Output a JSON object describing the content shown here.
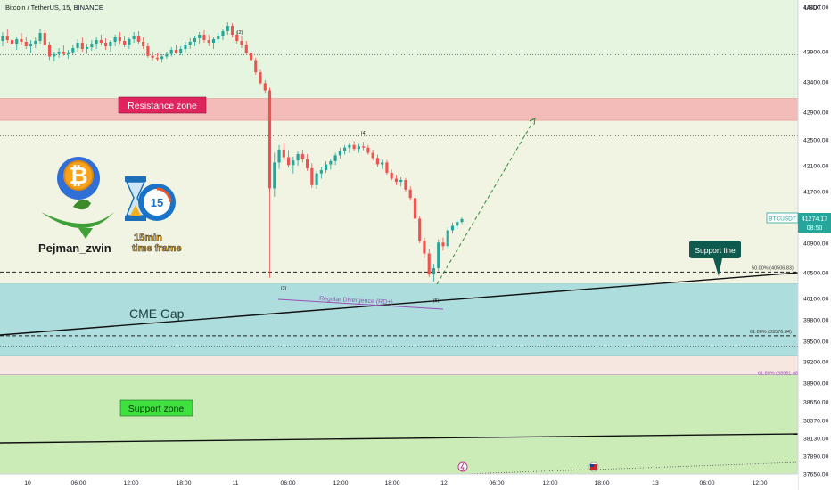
{
  "header": {
    "title": "Bitcoin / TetherUS, 15, BINANCE"
  },
  "chart_data": {
    "type": "candlestick",
    "title": "Bitcoin / TetherUS, 15, BINANCE",
    "ylim": [
      37600,
      44550
    ],
    "y_axis_currency": "USDT",
    "y_ticks": [
      44400,
      43900,
      43400,
      42900,
      42500,
      42100,
      41700,
      40900,
      40500,
      40100,
      39800,
      39500,
      39200,
      38900,
      38650,
      38370,
      38130,
      37890,
      37650
    ],
    "x_ticks": [
      "10",
      "06:00",
      "12:00",
      "18:00",
      "11",
      "06:00",
      "12:00",
      "18:00",
      "12",
      "06:00",
      "12:00",
      "18:00",
      "13",
      "06:00",
      "12:00"
    ],
    "price_label": {
      "symbol": "BTCUSDT",
      "value": "41274.17",
      "countdown": "08:50"
    },
    "zones": [
      {
        "name": "Resistance zone",
        "from": 42780,
        "to": 43130,
        "color": "#f2b8b5"
      },
      {
        "name": "CME Gap",
        "from": 39280,
        "to": 40330,
        "color": "#a9dcdc"
      },
      {
        "name": "Support zone",
        "from": 37600,
        "to": 39020,
        "color": "#c9ebb4"
      }
    ],
    "fib_levels": [
      {
        "label": "50.00% (40506.83)",
        "value": 40506.83
      },
      {
        "label": "61.80% (39576.04)",
        "value": 39576.04
      },
      {
        "label": "61.80% (38981.48)",
        "value": 38981.48
      }
    ],
    "waves": [
      "(2)",
      "(3)",
      "(4)",
      "(5)"
    ],
    "annotations": [
      "Regular Divergence (RD+)",
      "Support line"
    ],
    "candles": [
      [
        44020,
        44120,
        43960,
        44080
      ],
      [
        44080,
        44150,
        44000,
        44030
      ],
      [
        44030,
        44090,
        43940,
        43990
      ],
      [
        43990,
        44060,
        43920,
        44040
      ],
      [
        44040,
        44110,
        43980,
        44010
      ],
      [
        44010,
        44070,
        43930,
        43960
      ],
      [
        43960,
        44030,
        43880,
        43990
      ],
      [
        43990,
        44060,
        43940,
        44020
      ],
      [
        44020,
        44160,
        43990,
        44110
      ],
      [
        44110,
        44140,
        43960,
        43980
      ],
      [
        43980,
        44010,
        43760,
        43820
      ],
      [
        43820,
        43900,
        43740,
        43860
      ],
      [
        43860,
        43940,
        43800,
        43900
      ],
      [
        43900,
        43970,
        43830,
        43860
      ],
      [
        43860,
        43920,
        43780,
        43890
      ],
      [
        43890,
        43980,
        43840,
        43940
      ],
      [
        43940,
        44040,
        43900,
        44000
      ],
      [
        44000,
        44060,
        43900,
        43930
      ],
      [
        43930,
        43990,
        43860,
        43950
      ],
      [
        43950,
        44030,
        43910,
        43990
      ],
      [
        43990,
        44060,
        43930,
        44030
      ],
      [
        44030,
        44090,
        43970,
        44000
      ],
      [
        44000,
        44050,
        43920,
        43960
      ],
      [
        43960,
        44030,
        43900,
        44010
      ],
      [
        44010,
        44090,
        43960,
        44060
      ],
      [
        44060,
        44120,
        43990,
        44020
      ],
      [
        44020,
        44080,
        43950,
        43980
      ],
      [
        43980,
        44060,
        43930,
        44040
      ],
      [
        44040,
        44120,
        44000,
        44080
      ],
      [
        44080,
        44130,
        43990,
        44010
      ],
      [
        44010,
        44060,
        43930,
        43960
      ],
      [
        43960,
        44000,
        43800,
        43830
      ],
      [
        43830,
        43900,
        43760,
        43800
      ],
      [
        43800,
        43870,
        43740,
        43780
      ],
      [
        43780,
        43860,
        43720,
        43820
      ],
      [
        43820,
        43900,
        43780,
        43860
      ],
      [
        43860,
        43950,
        43820,
        43920
      ],
      [
        43920,
        43980,
        43860,
        43880
      ],
      [
        43880,
        43960,
        43840,
        43930
      ],
      [
        43930,
        44010,
        43890,
        43980
      ],
      [
        43980,
        44050,
        43930,
        44010
      ],
      [
        44010,
        44080,
        43960,
        44050
      ],
      [
        44050,
        44120,
        43990,
        44090
      ],
      [
        44090,
        44140,
        44000,
        44030
      ],
      [
        44030,
        44090,
        43960,
        44000
      ],
      [
        44000,
        44060,
        43930,
        44040
      ],
      [
        44040,
        44110,
        44000,
        44080
      ],
      [
        44080,
        44160,
        44030,
        44130
      ],
      [
        44130,
        44230,
        44090,
        44190
      ],
      [
        44190,
        44220,
        44060,
        44090
      ],
      [
        44090,
        44130,
        43990,
        44020
      ],
      [
        44020,
        44080,
        43940,
        43980
      ],
      [
        43980,
        44020,
        43850,
        43880
      ],
      [
        43880,
        43920,
        43720,
        43760
      ],
      [
        43760,
        43800,
        43520,
        43560
      ],
      [
        43560,
        43600,
        43360,
        43380
      ],
      [
        43380,
        43430,
        43220,
        43260
      ],
      [
        43260,
        43300,
        41700,
        41750
      ],
      [
        41750,
        42300,
        41620,
        42150
      ],
      [
        42150,
        42420,
        42050,
        42350
      ],
      [
        42350,
        42460,
        42180,
        42230
      ],
      [
        42230,
        42340,
        42070,
        42110
      ],
      [
        42110,
        42240,
        41980,
        42180
      ],
      [
        42180,
        42330,
        42100,
        42280
      ],
      [
        42280,
        42350,
        42150,
        42200
      ],
      [
        42200,
        42280,
        42020,
        42060
      ],
      [
        42060,
        42140,
        41760,
        41800
      ],
      [
        41800,
        42020,
        41740,
        41980
      ],
      [
        41980,
        42080,
        41900,
        42030
      ],
      [
        42030,
        42170,
        41990,
        42120
      ],
      [
        42120,
        42210,
        42040,
        42170
      ],
      [
        42170,
        42300,
        42110,
        42260
      ],
      [
        42260,
        42380,
        42210,
        42330
      ],
      [
        42330,
        42420,
        42270,
        42380
      ],
      [
        42380,
        42460,
        42300,
        42420
      ],
      [
        42420,
        42480,
        42330,
        42360
      ],
      [
        42360,
        42440,
        42300,
        42400
      ],
      [
        42400,
        42470,
        42340,
        42380
      ],
      [
        42380,
        42420,
        42270,
        42300
      ],
      [
        42300,
        42350,
        42180,
        42220
      ],
      [
        42220,
        42270,
        42080,
        42120
      ],
      [
        42120,
        42190,
        42050,
        42150
      ],
      [
        42150,
        42190,
        41960,
        41990
      ],
      [
        41990,
        42040,
        41870,
        41900
      ],
      [
        41900,
        41960,
        41800,
        41850
      ],
      [
        41850,
        41920,
        41780,
        41880
      ],
      [
        41880,
        41910,
        41700,
        41730
      ],
      [
        41730,
        41780,
        41560,
        41600
      ],
      [
        41600,
        41640,
        41240,
        41280
      ],
      [
        41280,
        41320,
        40900,
        40940
      ],
      [
        40940,
        40990,
        40700,
        40760
      ],
      [
        40760,
        40820,
        40430,
        40470
      ],
      [
        40470,
        40620,
        40360,
        40560
      ],
      [
        40560,
        40960,
        40520,
        40910
      ],
      [
        40910,
        40990,
        40800,
        40860
      ],
      [
        40860,
        41140,
        40830,
        41100
      ],
      [
        41100,
        41220,
        41050,
        41170
      ],
      [
        41170,
        41250,
        41120,
        41230
      ],
      [
        41230,
        41300,
        41200,
        41274
      ]
    ]
  },
  "logo": {
    "name": "Pejman_zwin",
    "timeframe_line1": "15min",
    "timeframe_line2": "time frame",
    "timer_number": "15"
  }
}
